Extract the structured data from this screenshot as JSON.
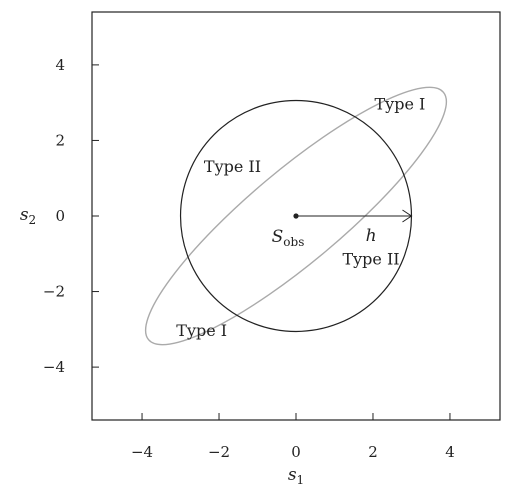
{
  "chart": {
    "x_axis": {
      "label": "s",
      "label_sub": "1",
      "ticks": [
        "−4",
        "−2",
        "0",
        "2",
        "4"
      ],
      "tick_values": [
        -4,
        -2,
        0,
        2,
        4
      ],
      "range": [
        -5.3,
        5.3
      ]
    },
    "y_axis": {
      "label": "s",
      "label_sub": "2",
      "ticks": [
        "4",
        "2",
        "0",
        "−2",
        "−4"
      ],
      "tick_values": [
        4,
        2,
        0,
        -2,
        -4
      ],
      "range": [
        -5.4,
        5.4
      ]
    },
    "circle": {
      "center": [
        0,
        0
      ],
      "radius": 3.0,
      "color": "#222222"
    },
    "ellipse": {
      "center": [
        0,
        0
      ],
      "semi_major": 5.0,
      "semi_minor": 1.2,
      "angle_deg": 40,
      "color": "#aaaaaa"
    },
    "observed_point": {
      "x": 0,
      "y": 0,
      "label": "S",
      "label_sub": "obs"
    },
    "radius_arrow": {
      "from": [
        0,
        0
      ],
      "to": [
        3,
        0
      ],
      "label": "h"
    },
    "region_labels": [
      {
        "text": "Type I",
        "x": 2.7,
        "y": 2.95
      },
      {
        "text": "Type II",
        "x": -1.65,
        "y": 1.3
      },
      {
        "text": "Type II",
        "x": 1.95,
        "y": -1.15
      },
      {
        "text": "Type I",
        "x": -2.45,
        "y": -3.05
      }
    ]
  }
}
